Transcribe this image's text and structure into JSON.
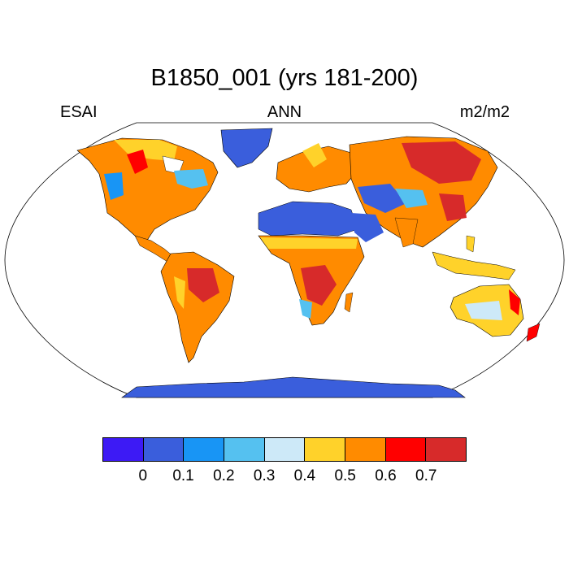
{
  "title": "B1850_001 (yrs 181-200)",
  "left_label": "ESAI",
  "center_label": "ANN",
  "right_label": "m2/m2",
  "colorbar": {
    "colors": [
      "#3d1af5",
      "#3a5edc",
      "#1895f5",
      "#55c1f0",
      "#cde9f8",
      "#ffd22a",
      "#ff8b00",
      "#ff0000",
      "#d72a2a"
    ],
    "labels": [
      "0",
      "0.1",
      "0.2",
      "0.3",
      "0.4",
      "0.5",
      "0.6",
      "0.7"
    ]
  },
  "map": {
    "projection": "Robinson",
    "ocean_color": "#ffffff",
    "outline_color": "#000000"
  }
}
